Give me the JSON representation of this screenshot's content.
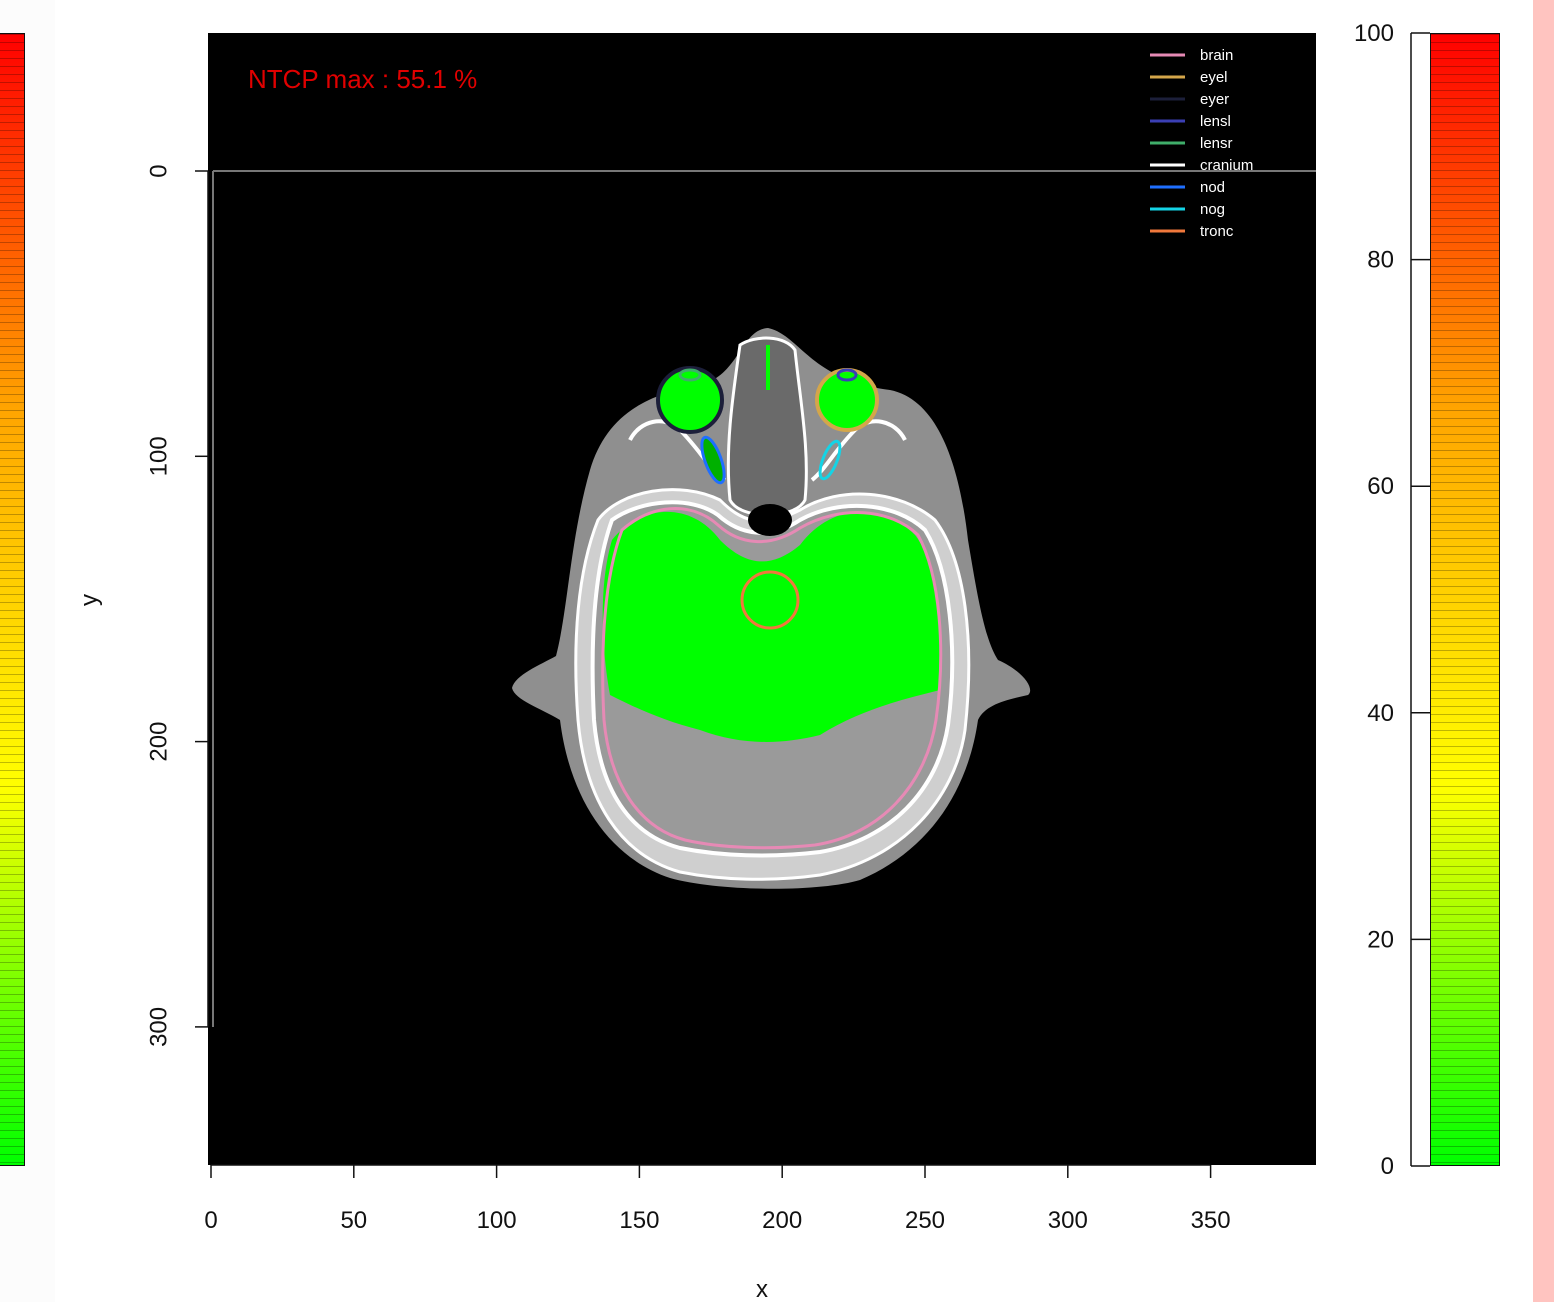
{
  "annotation": {
    "ntcp_max": "NTCP max : 55.1 %",
    "color": "#e00000"
  },
  "axes": {
    "xlabel": "x",
    "ylabel": "y",
    "x_ticks": [
      "0",
      "50",
      "100",
      "150",
      "200",
      "250",
      "300",
      "350"
    ],
    "y_ticks": [
      "0",
      "100",
      "200",
      "300"
    ]
  },
  "colorbar": {
    "ticks": [
      "100",
      "80",
      "60",
      "40",
      "20",
      "0"
    ],
    "range": [
      0,
      100
    ],
    "colors": [
      "#00ff00",
      "#ffff00",
      "#ffa500",
      "#ff0000"
    ]
  },
  "legend": [
    {
      "label": "brain",
      "color": "#e68ab5"
    },
    {
      "label": "eyel",
      "color": "#d4a64a"
    },
    {
      "label": "eyer",
      "color": "#1c1f3a"
    },
    {
      "label": "lensl",
      "color": "#3b3fb5"
    },
    {
      "label": "lensr",
      "color": "#3fae6a"
    },
    {
      "label": "cranium",
      "color": "#ffffff"
    },
    {
      "label": "nod",
      "color": "#1f6fff"
    },
    {
      "label": "nog",
      "color": "#14d4e6"
    },
    {
      "label": "tronc",
      "color": "#f0783c"
    }
  ],
  "colors": {
    "background": "#000000",
    "dose_fill": "#00ff00",
    "side_strip": "#ffc4c0"
  }
}
